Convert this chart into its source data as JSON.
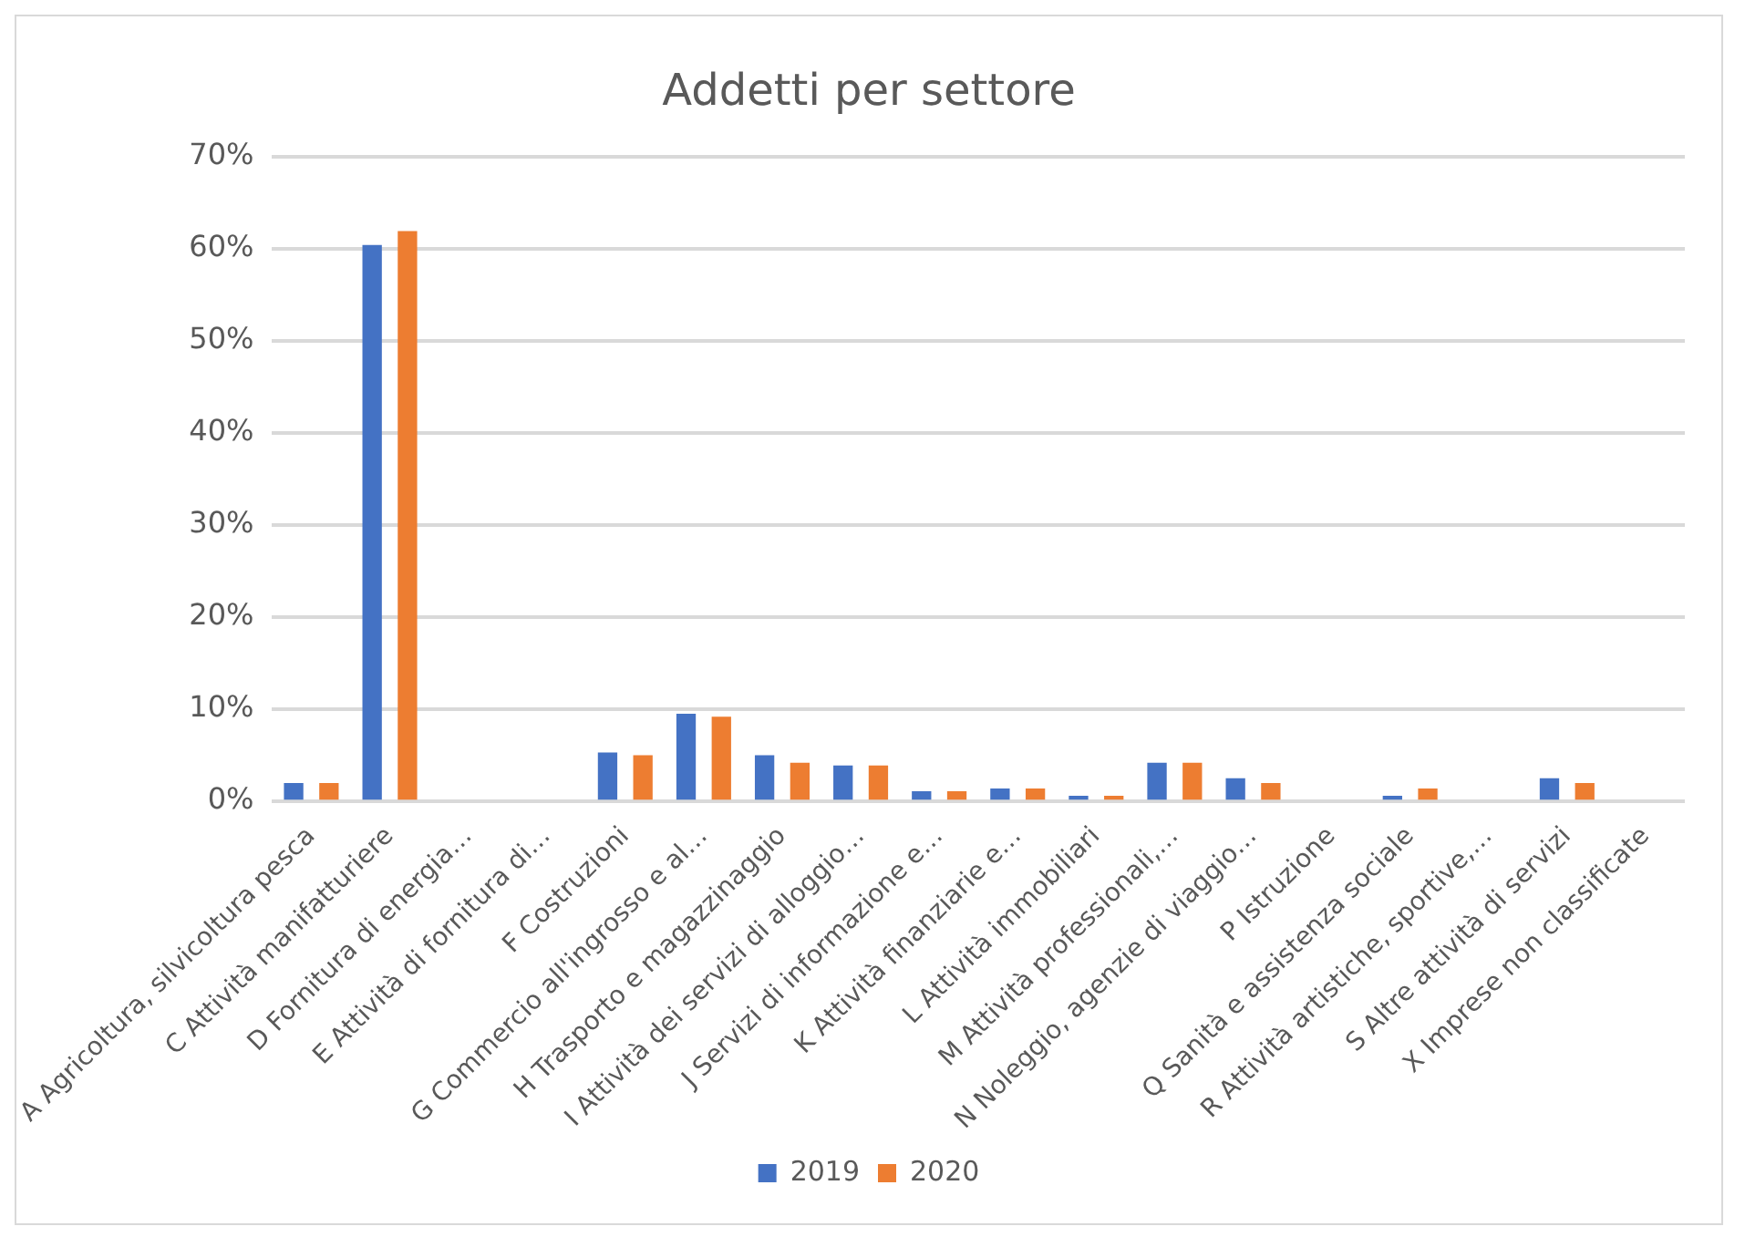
{
  "chart_data": {
    "type": "bar",
    "title": "Addetti per settore",
    "categories": [
      "A Agricoltura, silvicoltura pesca",
      "C Attività manifatturiere",
      "D Fornitura di energia…",
      "E Attività di fornitura di…",
      "F Costruzioni",
      "G Commercio all'ingrosso e al…",
      "H Trasporto e magazzinaggio",
      "I Attività dei servizi di alloggio…",
      "J Servizi di informazione e…",
      "K Attività finanziarie e…",
      "L Attività immobiliari",
      "M Attività professionali,…",
      "N Noleggio, agenzie di viaggio…",
      "P Istruzione",
      "Q Sanità e assistenza sociale",
      "R Attività artistiche, sportive,…",
      "S Altre attività di servizi",
      "X Imprese non classificate"
    ],
    "series": [
      {
        "name": "2019",
        "color": "#4472c4",
        "values": [
          2.0,
          60.4,
          0,
          0,
          5.3,
          9.5,
          5.0,
          3.9,
          1.1,
          1.4,
          0.6,
          4.2,
          2.5,
          0,
          0.6,
          0,
          2.5,
          0
        ]
      },
      {
        "name": "2020",
        "color": "#ed7d31",
        "values": [
          2.0,
          61.9,
          0,
          0,
          5.0,
          9.2,
          4.2,
          3.9,
          1.1,
          1.4,
          0.6,
          4.2,
          2.0,
          0,
          1.4,
          0,
          2.0,
          0
        ]
      }
    ],
    "ylim": [
      0,
      70
    ],
    "yticks": [
      {
        "value": 0,
        "label": "0%"
      },
      {
        "value": 10,
        "label": "10%"
      },
      {
        "value": 20,
        "label": "20%"
      },
      {
        "value": 30,
        "label": "30%"
      },
      {
        "value": 40,
        "label": "40%"
      },
      {
        "value": 50,
        "label": "50%"
      },
      {
        "value": 60,
        "label": "60%"
      },
      {
        "value": 70,
        "label": "70%"
      }
    ],
    "grid": "y",
    "legend": "bottom"
  }
}
